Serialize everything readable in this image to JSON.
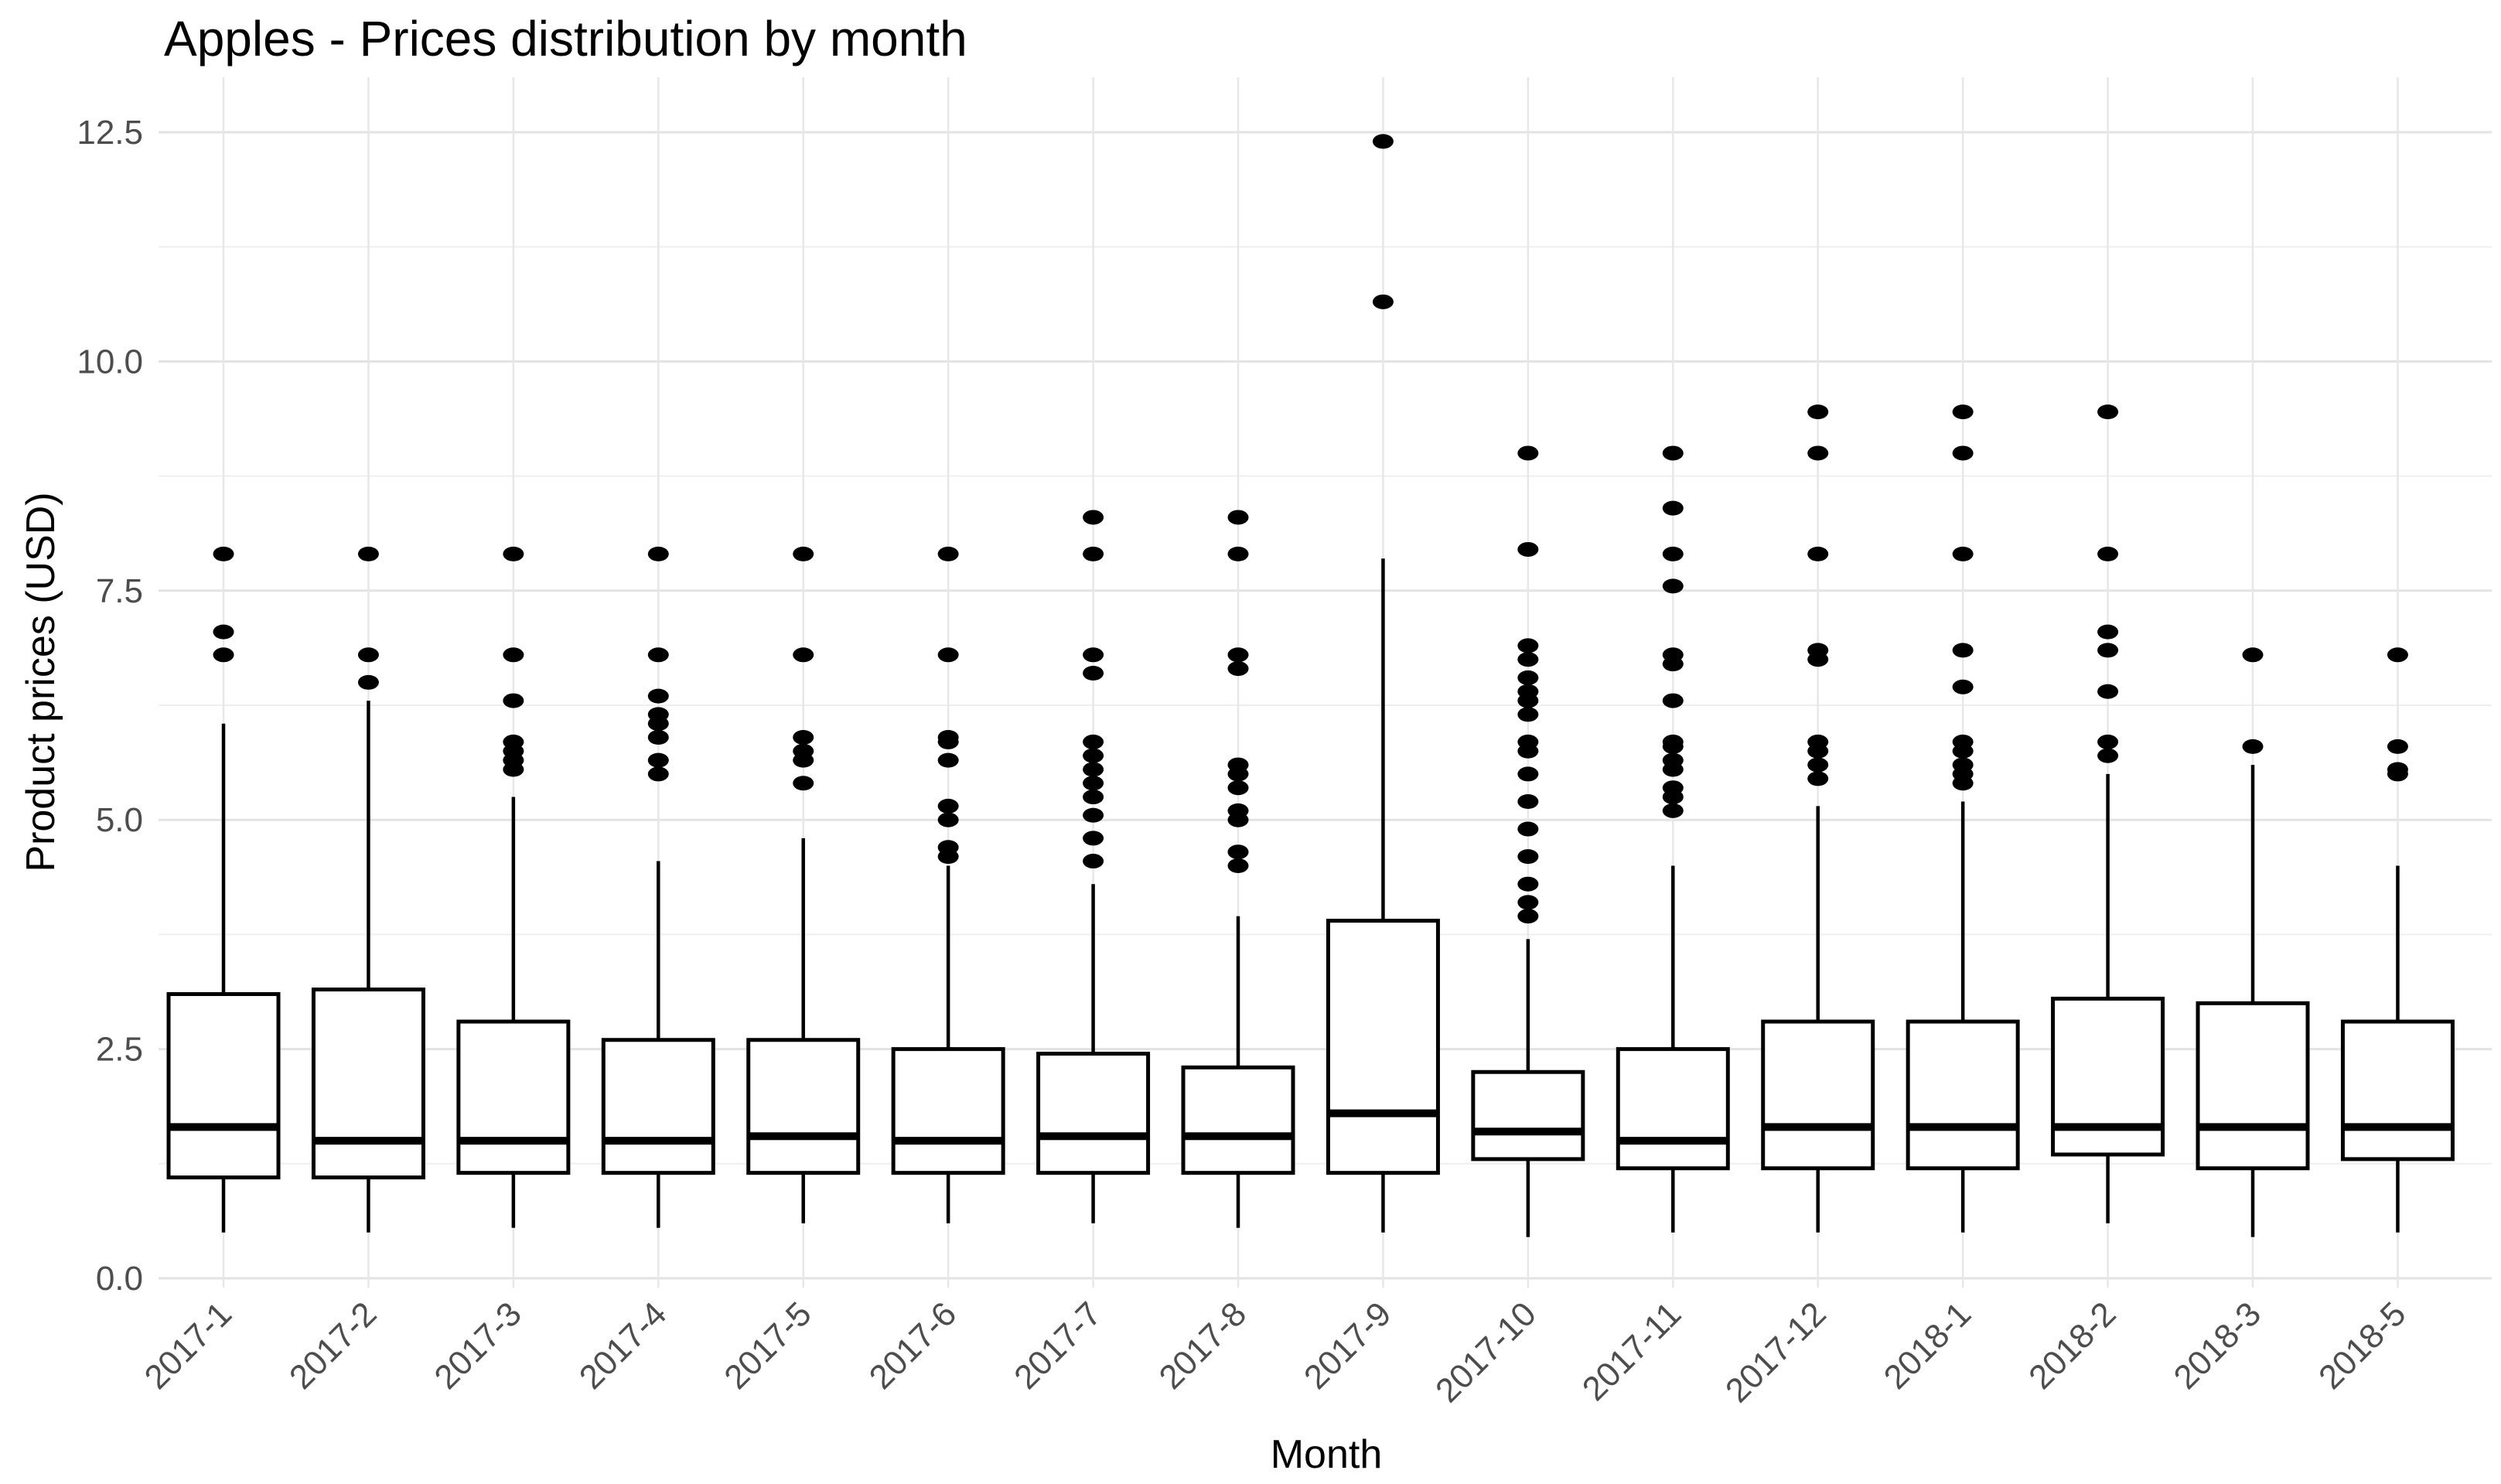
{
  "page": {
    "background": "#FFFFFF"
  },
  "chart": {
    "title": "Apples - Prices distribution by month",
    "x_label": "Month",
    "y_label": "Product prices (USD)"
  },
  "style": {
    "box_stroke": "#000000",
    "box_fill": "#FFFFFF",
    "outlier_fill": "#000000",
    "grid_major_color": "#E3E3E3",
    "grid_minor_color": "#EFEFEF",
    "grid_vertical_color": "#E7E7E7",
    "tick_label_color": "#4D4D4D",
    "title_color": "#000000"
  },
  "chart_data": {
    "type": "boxplot",
    "title": "Apples - Prices distribution by month",
    "xlabel": "Month",
    "ylabel": "Product prices (USD)",
    "ylim": [
      -0.3,
      13.1
    ],
    "grid": {
      "horizontal_major": true,
      "horizontal_minor": true,
      "vertical_per_category": true
    },
    "legend_position": "none",
    "yticks": {
      "values": [
        0,
        2.5,
        5,
        7.5,
        10,
        12.5
      ],
      "labels": [
        "0.0",
        "2.5",
        "5.0",
        "7.5",
        "10.0",
        "12.5"
      ]
    },
    "yminor": [
      1.25,
      3.75,
      6.25,
      8.75,
      11.25
    ],
    "categories": [
      "2017-1",
      "2017-2",
      "2017-3",
      "2017-4",
      "2017-5",
      "2017-6",
      "2017-7",
      "2017-8",
      "2017-9",
      "2017-10",
      "2017-11",
      "2017-12",
      "2018-1",
      "2018-2",
      "2018-3",
      "2018-5"
    ],
    "series": [
      {
        "label": "2017-1",
        "whisker_low": 0.5,
        "q1": 1.1,
        "median": 1.65,
        "q3": 3.1,
        "whisker_high": 6.05,
        "outliers": [
          6.8,
          7.05,
          7.9
        ]
      },
      {
        "label": "2017-2",
        "whisker_low": 0.5,
        "q1": 1.1,
        "median": 1.5,
        "q3": 3.15,
        "whisker_high": 6.3,
        "outliers": [
          6.5,
          6.8,
          7.9
        ]
      },
      {
        "label": "2017-3",
        "whisker_low": 0.55,
        "q1": 1.15,
        "median": 1.5,
        "q3": 2.8,
        "whisker_high": 5.25,
        "outliers": [
          5.55,
          5.65,
          5.75,
          5.85,
          6.3,
          6.8,
          7.9
        ]
      },
      {
        "label": "2017-4",
        "whisker_low": 0.55,
        "q1": 1.15,
        "median": 1.5,
        "q3": 2.6,
        "whisker_high": 4.55,
        "outliers": [
          5.5,
          5.65,
          5.9,
          6.05,
          6.15,
          6.35,
          6.8,
          7.9
        ]
      },
      {
        "label": "2017-5",
        "whisker_low": 0.6,
        "q1": 1.15,
        "median": 1.55,
        "q3": 2.6,
        "whisker_high": 4.8,
        "outliers": [
          5.4,
          5.65,
          5.75,
          5.9,
          6.8,
          7.9
        ]
      },
      {
        "label": "2017-6",
        "whisker_low": 0.6,
        "q1": 1.15,
        "median": 1.5,
        "q3": 2.5,
        "whisker_high": 4.5,
        "outliers": [
          4.6,
          4.7,
          5.0,
          5.15,
          5.65,
          5.85,
          5.9,
          6.8,
          7.9
        ]
      },
      {
        "label": "2017-7",
        "whisker_low": 0.6,
        "q1": 1.15,
        "median": 1.55,
        "q3": 2.45,
        "whisker_high": 4.3,
        "outliers": [
          4.55,
          4.8,
          5.05,
          5.25,
          5.4,
          5.55,
          5.7,
          5.85,
          6.6,
          6.8,
          7.9,
          8.3
        ]
      },
      {
        "label": "2017-8",
        "whisker_low": 0.55,
        "q1": 1.15,
        "median": 1.55,
        "q3": 2.3,
        "whisker_high": 3.95,
        "outliers": [
          4.5,
          4.65,
          5.0,
          5.1,
          5.35,
          5.5,
          5.6,
          6.65,
          6.8,
          7.9,
          8.3
        ]
      },
      {
        "label": "2017-9",
        "whisker_low": 0.5,
        "q1": 1.15,
        "median": 1.8,
        "q3": 3.9,
        "whisker_high": 7.85,
        "outliers": [
          10.65,
          12.4
        ]
      },
      {
        "label": "2017-10",
        "whisker_low": 0.45,
        "q1": 1.3,
        "median": 1.6,
        "q3": 2.25,
        "whisker_high": 3.7,
        "outliers": [
          3.95,
          4.1,
          4.3,
          4.6,
          4.9,
          5.2,
          5.5,
          5.75,
          5.85,
          6.15,
          6.3,
          6.4,
          6.55,
          6.75,
          6.9,
          7.95,
          9.0
        ]
      },
      {
        "label": "2017-11",
        "whisker_low": 0.5,
        "q1": 1.2,
        "median": 1.5,
        "q3": 2.5,
        "whisker_high": 4.5,
        "outliers": [
          5.1,
          5.25,
          5.35,
          5.55,
          5.65,
          5.8,
          5.85,
          6.3,
          6.7,
          6.8,
          7.55,
          7.9,
          8.4,
          9.0
        ]
      },
      {
        "label": "2017-12",
        "whisker_low": 0.5,
        "q1": 1.2,
        "median": 1.65,
        "q3": 2.8,
        "whisker_high": 5.15,
        "outliers": [
          5.45,
          5.6,
          5.75,
          5.85,
          6.75,
          6.85,
          7.9,
          9.0,
          9.45
        ]
      },
      {
        "label": "2018-1",
        "whisker_low": 0.5,
        "q1": 1.2,
        "median": 1.65,
        "q3": 2.8,
        "whisker_high": 5.2,
        "outliers": [
          5.4,
          5.5,
          5.6,
          5.75,
          5.85,
          6.45,
          6.85,
          7.9,
          9.0,
          9.45
        ]
      },
      {
        "label": "2018-2",
        "whisker_low": 0.6,
        "q1": 1.35,
        "median": 1.65,
        "q3": 3.05,
        "whisker_high": 5.5,
        "outliers": [
          5.7,
          5.85,
          6.4,
          6.85,
          7.05,
          7.9,
          9.45
        ]
      },
      {
        "label": "2018-3",
        "whisker_low": 0.45,
        "q1": 1.2,
        "median": 1.65,
        "q3": 3.0,
        "whisker_high": 5.6,
        "outliers": [
          5.8,
          6.8
        ]
      },
      {
        "label": "2018-5",
        "whisker_low": 0.5,
        "q1": 1.3,
        "median": 1.65,
        "q3": 2.8,
        "whisker_high": 4.5,
        "outliers": [
          5.5,
          5.55,
          5.8,
          6.8
        ]
      }
    ]
  }
}
